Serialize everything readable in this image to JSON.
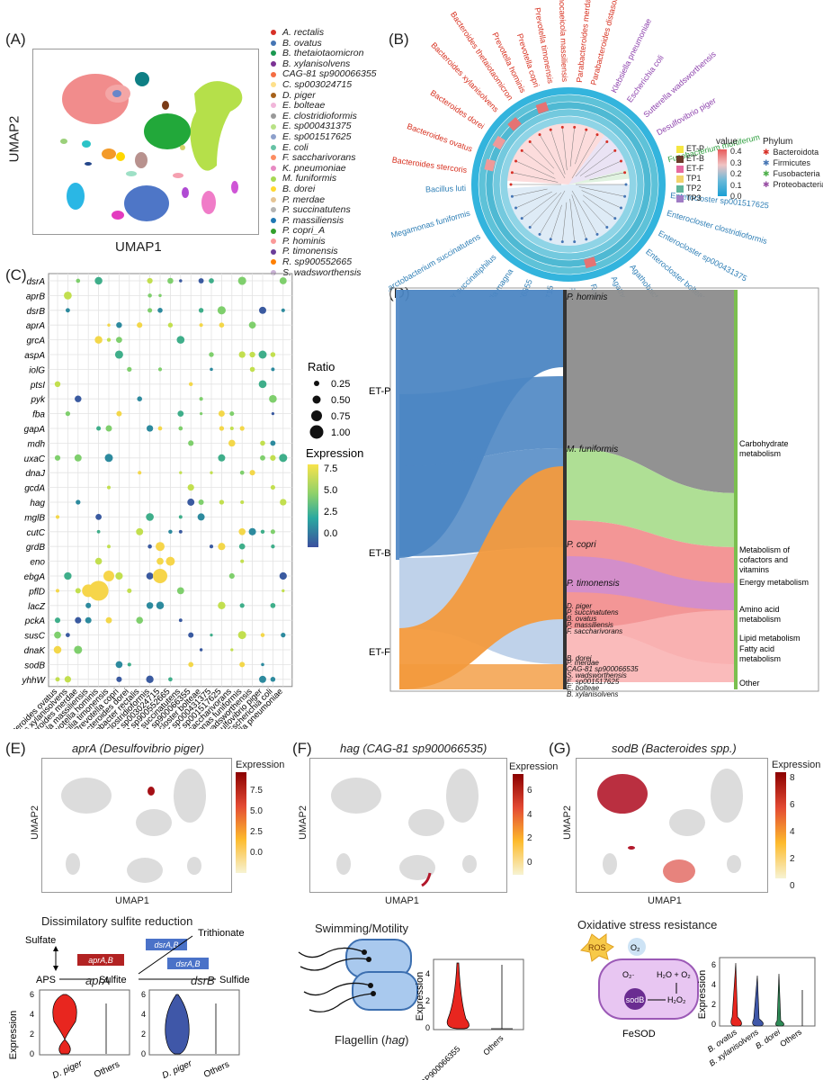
{
  "panels": {
    "A": "(A)",
    "B": "(B)",
    "C": "(C)",
    "D": "(D)",
    "E": "(E)",
    "F": "(F)",
    "G": "(G)"
  },
  "umap": {
    "x": "UMAP1",
    "y": "UMAP2"
  },
  "species_legend": [
    {
      "name": "A. rectalis",
      "color": "#d73027"
    },
    {
      "name": "B. ovatus",
      "color": "#4575b4"
    },
    {
      "name": "B. thetaiotaomicron",
      "color": "#1a9850"
    },
    {
      "name": "B. xylanisolvens",
      "color": "#7b3294"
    },
    {
      "name": "CAG-81 sp900066355",
      "color": "#f46d43"
    },
    {
      "name": "C. sp003024715",
      "color": "#fee08b"
    },
    {
      "name": "D. piger",
      "color": "#a6611a"
    },
    {
      "name": "E. bolteae",
      "color": "#f1b6da"
    },
    {
      "name": "E. clostridioformis",
      "color": "#999999"
    },
    {
      "name": "E. sp000431375",
      "color": "#b8e186"
    },
    {
      "name": "E. sp001517625",
      "color": "#8da0cb"
    },
    {
      "name": "E. coli",
      "color": "#66c2a5"
    },
    {
      "name": "F. saccharivorans",
      "color": "#fc8d62"
    },
    {
      "name": "K. pneumoniae",
      "color": "#e78ac3"
    },
    {
      "name": "M. funiformis",
      "color": "#a6d854"
    },
    {
      "name": "B. dorei",
      "color": "#ffd92f"
    },
    {
      "name": "P. merdae",
      "color": "#e5c494"
    },
    {
      "name": "P. succinatutens",
      "color": "#b3b3b3"
    },
    {
      "name": "P. massiliensis",
      "color": "#1f78b4"
    },
    {
      "name": "P. copri_A",
      "color": "#33a02c"
    },
    {
      "name": "P. hominis",
      "color": "#fb9a99"
    },
    {
      "name": "P. timonensis",
      "color": "#6a3d9a"
    },
    {
      "name": "R. sp900552665",
      "color": "#ff7f00"
    },
    {
      "name": "S. wadsworthensis",
      "color": "#cab2d6"
    }
  ],
  "circ": {
    "species_red": [
      "Prevotella timonensis",
      "Prevotella copri",
      "Prevotella hominis",
      "Bacteroides thetaiotaomicron",
      "Bacteroides xylanisolvens",
      "Bacteroides dorei",
      "Bacteroides ovatus",
      "Bacteroides stercoris",
      "Phocaeicola massiliensis",
      "Parabacteroides merdae",
      "Parabacteroides distasonis"
    ],
    "species_purple": [
      "Klebsiella pneumoniae",
      "Escherichia coli",
      "Sutterella wadsworthensis",
      "Desulfovibrio piger"
    ],
    "species_green": [
      "Fusobacterium mortiferum"
    ],
    "species_blue": [
      "Enterocloster sp001517625",
      "Enterocloster clostridioformis",
      "Enterocloster sp000431375",
      "Enterocloster bolteae",
      "Agathobacter faecis",
      "Agathobacter rectalis",
      "Roseburia sp900552665",
      "Fusicatenibacter saccharivorans",
      "Clostridium sp003024715",
      "CAG-81 sp900066355",
      "Veillonella magna",
      "Dialister succinatiphilus",
      "Phascolarctobacterium succinatutens",
      "Megamonas funiformis",
      "Bacillus luti"
    ],
    "value_title": "value",
    "value_ticks": [
      "0.4",
      "0.3",
      "0.2",
      "0.1",
      "0.0"
    ],
    "ring_legend": [
      {
        "name": "ET-P",
        "color": "#f5e642"
      },
      {
        "name": "ET-B",
        "color": "#6b3a2a"
      },
      {
        "name": "ET-F",
        "color": "#e66aa0"
      },
      {
        "name": "TP1",
        "color": "#f2d36b"
      },
      {
        "name": "TP2",
        "color": "#5fb59a"
      },
      {
        "name": "TP3",
        "color": "#a07cc5"
      }
    ],
    "phylum_title": "Phylum",
    "phylum": [
      {
        "name": "Bacteroidota",
        "color": "#d73027"
      },
      {
        "name": "Firmicutes",
        "color": "#4575b4"
      },
      {
        "name": "Fusobacteria",
        "color": "#4daf4a"
      },
      {
        "name": "Proteobacteria",
        "color": "#984ea3"
      }
    ]
  },
  "dot": {
    "genes": [
      "dsrA",
      "aprB",
      "dsrB",
      "aprA",
      "grcA",
      "aspA",
      "iolG",
      "ptsI",
      "pyk",
      "fba",
      "gapA",
      "mdh",
      "uxaC",
      "dnaJ",
      "gcdA",
      "hag",
      "mglB",
      "cutC",
      "grdB",
      "eno",
      "ebgA",
      "pflD",
      "lacZ",
      "pckA",
      "susC",
      "dnaK",
      "sodB",
      "yhhW"
    ],
    "species": [
      "Bacteroides ovatus",
      "Bacteroides xylanisolvens",
      "Parabacteroides merdae",
      "Phocaeicola massiliensis",
      "Prevotella hominis",
      "Prevotellamassilia timonensis",
      "Prevotella copri",
      "Bacteroides dorei",
      "Agathobacter rectalis",
      "Enterocloster clostridioformis",
      "Clostridium sp003024715",
      "Roseburia sp900552665",
      "Phascolarctobacterium succinatutens",
      "CAG-81 sp900066355",
      "Enterocloster bolteae",
      "Enterocloster sp000431375",
      "Enterocloster sp001517625",
      "Fusicatenibacter saccharivorans",
      "Megamonas funiformis",
      "Sutterella wadsworthensis",
      "Desulfovibrio piger",
      "Escherichia coli",
      "Klebsiella pneumoniae"
    ],
    "ratio_title": "Ratio",
    "ratio_ticks": [
      "0.25",
      "0.50",
      "0.75",
      "1.00"
    ],
    "expr_title": "Expression",
    "expr_ticks": [
      "7.5",
      "5.0",
      "2.5",
      "0.0"
    ]
  },
  "sankey": {
    "left": [
      "ET-P",
      "ET-B",
      "ET-F"
    ],
    "mid": [
      "P. hominis",
      "M. funiformis",
      "P. copri",
      "P. timonensis",
      "D. piger",
      "P. succinatutens",
      "B. ovatus",
      "P. massiliensis",
      "F. saccharivorans",
      "B. dorei",
      "P. merdae",
      "CAG-81 sp900066535",
      "S. wadsworthensis",
      "E. sp001517625",
      "E. bolteae",
      "B. xylanisolvens"
    ],
    "right": [
      "Carbohydrate metabolism",
      "Metabolism of cofactors and vitamins",
      "Energy metabolism",
      "Amino acid metabolism",
      "Lipid metabolism",
      "Fatty acid metabolism",
      "Other"
    ]
  },
  "E": {
    "title_gene": "aprA",
    "title_sp": "(Desulfovibrio piger)",
    "expr_title": "Expression",
    "ticks": [
      "7.5",
      "5.0",
      "2.5",
      "0.0"
    ],
    "pathway_title": "Dissimilatory sulfite reduction",
    "sulfate": "Sulfate",
    "aps": "APS",
    "sulfite": "Sulfite",
    "sulfide": "Sulfide",
    "trithionate": "Trithionate",
    "enz1": "aprA,B",
    "enz2": "dsrA,B",
    "enz3": "dsrA,B",
    "violin1_title": "aprA",
    "violin2_title": "dsrB",
    "violin_y": "Expression",
    "violin_ticks": [
      "6",
      "4",
      "2",
      "0"
    ],
    "g1": "D. piger",
    "g2": "Others"
  },
  "F": {
    "title_gene": "hag",
    "title_sp": "(CAG-81 sp900066535)",
    "expr_title": "Expression",
    "ticks": [
      "6",
      "4",
      "2",
      "0"
    ],
    "motility": "Swimming/Motility",
    "flagellin": "Flagellin (",
    "flagellin_gene": "hag",
    "violin_y": "Expression",
    "violin_ticks": [
      "4",
      "2",
      "0"
    ],
    "g1": "CAG-81 SP900066355",
    "g2": "Others"
  },
  "G": {
    "title_gene": "sodB",
    "title_sp": "(Bacteroides spp.)",
    "expr_title": "Expression",
    "ticks": [
      "8",
      "6",
      "4",
      "2",
      "0"
    ],
    "stress": "Oxidative stress resistance",
    "ros": "ROS",
    "o2": "O₂",
    "o2m": "O₂·",
    "h2o": "H₂O + O₂",
    "h2o2": "H₂O₂",
    "sodb": "sodB",
    "fesod": "FeSOD",
    "violin_y": "Expression",
    "violin_ticks": [
      "6",
      "4",
      "2",
      "0"
    ],
    "groups": [
      "B. ovatus",
      "B. xylanisolvens",
      "B. dorei",
      "Others"
    ]
  }
}
